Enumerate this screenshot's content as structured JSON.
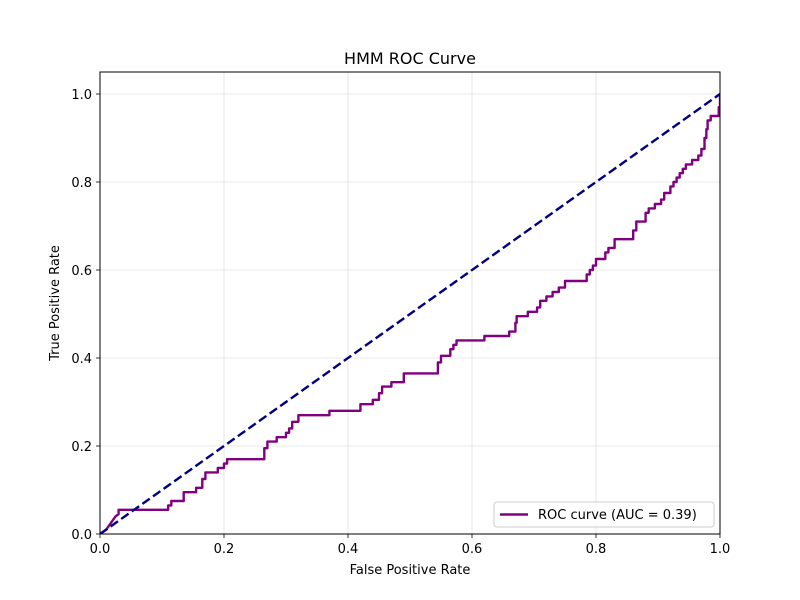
{
  "chart_data": {
    "type": "line",
    "title": "HMM ROC Curve",
    "xlabel": "False Positive Rate",
    "ylabel": "True Positive Rate",
    "xlim": [
      0.0,
      1.0
    ],
    "ylim": [
      0.0,
      1.05
    ],
    "grid": true,
    "legend_position": "lower-right",
    "x_ticks": [
      "0.0",
      "0.2",
      "0.4",
      "0.6",
      "0.8",
      "1.0"
    ],
    "y_ticks": [
      "0.0",
      "0.2",
      "0.4",
      "0.6",
      "0.8",
      "1.0"
    ],
    "series": [
      {
        "name": "ROC curve (AUC = 0.39)",
        "color": "#800080",
        "style": "solid",
        "points": [
          [
            0.0,
            0.0
          ],
          [
            0.01,
            0.01
          ],
          [
            0.015,
            0.02
          ],
          [
            0.02,
            0.03
          ],
          [
            0.025,
            0.04
          ],
          [
            0.03,
            0.045
          ],
          [
            0.03,
            0.055
          ],
          [
            0.11,
            0.055
          ],
          [
            0.11,
            0.065
          ],
          [
            0.115,
            0.065
          ],
          [
            0.115,
            0.075
          ],
          [
            0.135,
            0.075
          ],
          [
            0.135,
            0.095
          ],
          [
            0.155,
            0.095
          ],
          [
            0.155,
            0.105
          ],
          [
            0.165,
            0.105
          ],
          [
            0.165,
            0.125
          ],
          [
            0.17,
            0.125
          ],
          [
            0.17,
            0.14
          ],
          [
            0.19,
            0.14
          ],
          [
            0.19,
            0.15
          ],
          [
            0.2,
            0.15
          ],
          [
            0.2,
            0.16
          ],
          [
            0.205,
            0.16
          ],
          [
            0.205,
            0.17
          ],
          [
            0.265,
            0.17
          ],
          [
            0.265,
            0.195
          ],
          [
            0.27,
            0.195
          ],
          [
            0.27,
            0.21
          ],
          [
            0.285,
            0.21
          ],
          [
            0.285,
            0.22
          ],
          [
            0.3,
            0.22
          ],
          [
            0.3,
            0.23
          ],
          [
            0.305,
            0.23
          ],
          [
            0.305,
            0.24
          ],
          [
            0.31,
            0.24
          ],
          [
            0.31,
            0.255
          ],
          [
            0.32,
            0.255
          ],
          [
            0.32,
            0.27
          ],
          [
            0.37,
            0.27
          ],
          [
            0.37,
            0.28
          ],
          [
            0.42,
            0.28
          ],
          [
            0.42,
            0.295
          ],
          [
            0.44,
            0.295
          ],
          [
            0.44,
            0.305
          ],
          [
            0.45,
            0.305
          ],
          [
            0.45,
            0.32
          ],
          [
            0.455,
            0.32
          ],
          [
            0.455,
            0.335
          ],
          [
            0.47,
            0.335
          ],
          [
            0.47,
            0.345
          ],
          [
            0.49,
            0.345
          ],
          [
            0.49,
            0.365
          ],
          [
            0.545,
            0.365
          ],
          [
            0.545,
            0.39
          ],
          [
            0.55,
            0.39
          ],
          [
            0.55,
            0.405
          ],
          [
            0.565,
            0.405
          ],
          [
            0.565,
            0.42
          ],
          [
            0.57,
            0.42
          ],
          [
            0.57,
            0.43
          ],
          [
            0.575,
            0.43
          ],
          [
            0.575,
            0.44
          ],
          [
            0.62,
            0.44
          ],
          [
            0.62,
            0.45
          ],
          [
            0.66,
            0.45
          ],
          [
            0.66,
            0.46
          ],
          [
            0.67,
            0.46
          ],
          [
            0.67,
            0.48
          ],
          [
            0.672,
            0.48
          ],
          [
            0.672,
            0.495
          ],
          [
            0.69,
            0.495
          ],
          [
            0.69,
            0.505
          ],
          [
            0.705,
            0.505
          ],
          [
            0.705,
            0.515
          ],
          [
            0.71,
            0.515
          ],
          [
            0.71,
            0.53
          ],
          [
            0.72,
            0.53
          ],
          [
            0.72,
            0.54
          ],
          [
            0.73,
            0.54
          ],
          [
            0.73,
            0.55
          ],
          [
            0.74,
            0.55
          ],
          [
            0.74,
            0.56
          ],
          [
            0.75,
            0.56
          ],
          [
            0.75,
            0.575
          ],
          [
            0.785,
            0.575
          ],
          [
            0.785,
            0.59
          ],
          [
            0.79,
            0.59
          ],
          [
            0.79,
            0.6
          ],
          [
            0.795,
            0.6
          ],
          [
            0.795,
            0.61
          ],
          [
            0.8,
            0.61
          ],
          [
            0.8,
            0.625
          ],
          [
            0.815,
            0.625
          ],
          [
            0.815,
            0.64
          ],
          [
            0.82,
            0.64
          ],
          [
            0.82,
            0.65
          ],
          [
            0.83,
            0.65
          ],
          [
            0.83,
            0.67
          ],
          [
            0.86,
            0.67
          ],
          [
            0.86,
            0.69
          ],
          [
            0.865,
            0.69
          ],
          [
            0.865,
            0.71
          ],
          [
            0.88,
            0.71
          ],
          [
            0.88,
            0.73
          ],
          [
            0.885,
            0.73
          ],
          [
            0.885,
            0.74
          ],
          [
            0.895,
            0.74
          ],
          [
            0.895,
            0.75
          ],
          [
            0.905,
            0.75
          ],
          [
            0.905,
            0.76
          ],
          [
            0.91,
            0.76
          ],
          [
            0.91,
            0.775
          ],
          [
            0.92,
            0.775
          ],
          [
            0.92,
            0.79
          ],
          [
            0.925,
            0.79
          ],
          [
            0.925,
            0.8
          ],
          [
            0.93,
            0.8
          ],
          [
            0.93,
            0.81
          ],
          [
            0.935,
            0.81
          ],
          [
            0.935,
            0.82
          ],
          [
            0.94,
            0.82
          ],
          [
            0.94,
            0.83
          ],
          [
            0.945,
            0.83
          ],
          [
            0.945,
            0.84
          ],
          [
            0.955,
            0.84
          ],
          [
            0.955,
            0.85
          ],
          [
            0.965,
            0.85
          ],
          [
            0.965,
            0.86
          ],
          [
            0.97,
            0.86
          ],
          [
            0.97,
            0.875
          ],
          [
            0.975,
            0.875
          ],
          [
            0.975,
            0.9
          ],
          [
            0.978,
            0.9
          ],
          [
            0.978,
            0.92
          ],
          [
            0.98,
            0.92
          ],
          [
            0.98,
            0.94
          ],
          [
            0.985,
            0.94
          ],
          [
            0.985,
            0.95
          ],
          [
            0.998,
            0.95
          ],
          [
            0.998,
            0.97
          ],
          [
            1.0,
            0.97
          ],
          [
            1.0,
            1.0
          ]
        ]
      },
      {
        "name": "",
        "color": "#000080",
        "style": "dashed",
        "points": [
          [
            0.0,
            0.0
          ],
          [
            1.0,
            1.0
          ]
        ]
      }
    ]
  }
}
